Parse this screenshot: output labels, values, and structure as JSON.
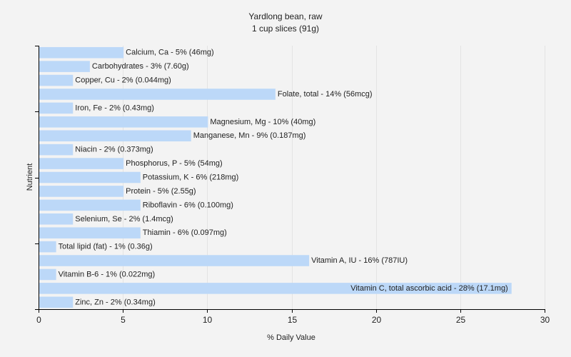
{
  "chart_data": {
    "type": "bar",
    "orientation": "horizontal",
    "title": "Yardlong bean, raw",
    "subtitle": "1 cup slices (91g)",
    "xlabel": "% Daily Value",
    "ylabel": "Nutrient",
    "xlim": [
      0,
      30
    ],
    "xticks": [
      0,
      5,
      10,
      15,
      20,
      25,
      30
    ],
    "grid": true,
    "bar_color": "#bcd8f8",
    "bars": [
      {
        "value": 5,
        "label": "Calcium, Ca - 5% (46mg)"
      },
      {
        "value": 3,
        "label": "Carbohydrates - 3% (7.60g)"
      },
      {
        "value": 2,
        "label": "Copper, Cu - 2% (0.044mg)"
      },
      {
        "value": 14,
        "label": "Folate, total - 14% (56mcg)"
      },
      {
        "value": 2,
        "label": "Iron, Fe - 2% (0.43mg)"
      },
      {
        "value": 10,
        "label": "Magnesium, Mg - 10% (40mg)"
      },
      {
        "value": 9,
        "label": "Manganese, Mn - 9% (0.187mg)"
      },
      {
        "value": 2,
        "label": "Niacin - 2% (0.373mg)"
      },
      {
        "value": 5,
        "label": "Phosphorus, P - 5% (54mg)"
      },
      {
        "value": 6,
        "label": "Potassium, K - 6% (218mg)"
      },
      {
        "value": 5,
        "label": "Protein - 5% (2.55g)"
      },
      {
        "value": 6,
        "label": "Riboflavin - 6% (0.100mg)"
      },
      {
        "value": 2,
        "label": "Selenium, Se - 2% (1.4mcg)"
      },
      {
        "value": 6,
        "label": "Thiamin - 6% (0.097mg)"
      },
      {
        "value": 1,
        "label": "Total lipid (fat) - 1% (0.36g)"
      },
      {
        "value": 16,
        "label": "Vitamin A, IU - 16% (787IU)"
      },
      {
        "value": 1,
        "label": "Vitamin B-6 - 1% (0.022mg)"
      },
      {
        "value": 28,
        "label": "Vitamin C, total ascorbic acid - 28% (17.1mg)"
      },
      {
        "value": 2,
        "label": "Zinc, Zn - 2% (0.34mg)"
      }
    ]
  }
}
